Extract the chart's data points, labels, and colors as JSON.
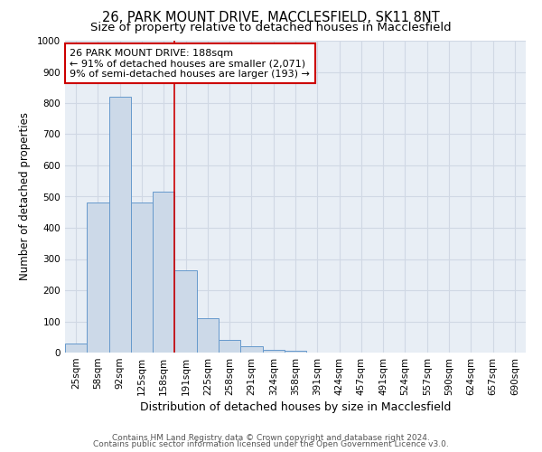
{
  "title1": "26, PARK MOUNT DRIVE, MACCLESFIELD, SK11 8NT",
  "title2": "Size of property relative to detached houses in Macclesfield",
  "xlabel": "Distribution of detached houses by size in Macclesfield",
  "ylabel": "Number of detached properties",
  "categories": [
    "25sqm",
    "58sqm",
    "92sqm",
    "125sqm",
    "158sqm",
    "191sqm",
    "225sqm",
    "258sqm",
    "291sqm",
    "324sqm",
    "358sqm",
    "391sqm",
    "424sqm",
    "457sqm",
    "491sqm",
    "524sqm",
    "557sqm",
    "590sqm",
    "624sqm",
    "657sqm",
    "690sqm"
  ],
  "values": [
    30,
    480,
    820,
    480,
    515,
    265,
    110,
    40,
    20,
    10,
    5,
    0,
    0,
    0,
    0,
    0,
    0,
    0,
    0,
    0,
    0
  ],
  "bar_color": "#ccd9e8",
  "bar_edge_color": "#6699cc",
  "red_line_x": 4.5,
  "annotation_text": "26 PARK MOUNT DRIVE: 188sqm\n← 91% of detached houses are smaller (2,071)\n9% of semi-detached houses are larger (193) →",
  "annotation_box_color": "#ffffff",
  "annotation_box_edge": "#cc0000",
  "ylim": [
    0,
    1000
  ],
  "grid_color": "#d0d8e4",
  "background_color": "#e8eef5",
  "footer1": "Contains HM Land Registry data © Crown copyright and database right 2024.",
  "footer2": "Contains public sector information licensed under the Open Government Licence v3.0.",
  "title1_fontsize": 10.5,
  "title2_fontsize": 9.5,
  "xlabel_fontsize": 9,
  "ylabel_fontsize": 8.5,
  "tick_fontsize": 7.5,
  "annotation_fontsize": 8,
  "footer_fontsize": 6.5
}
